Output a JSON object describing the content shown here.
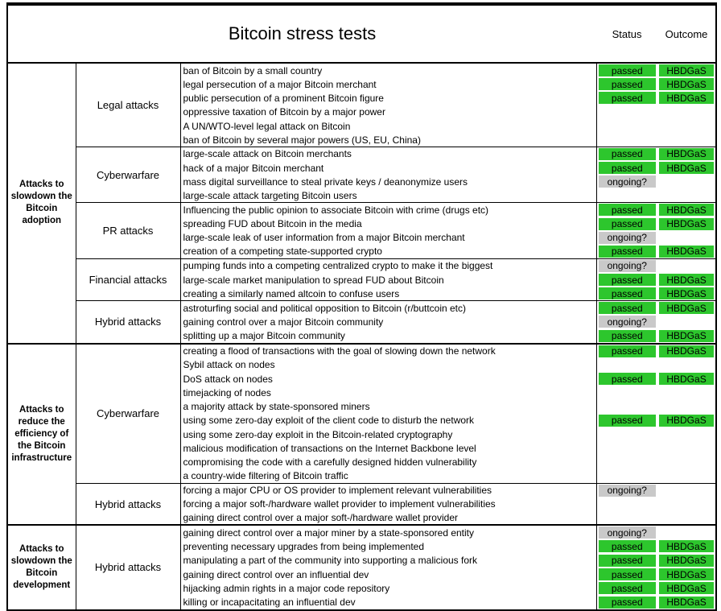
{
  "title": "Bitcoin stress tests",
  "columns": {
    "status": "Status",
    "outcome": "Outcome"
  },
  "status_colors": {
    "passed": "#2dc62d",
    "ongoing?": "#c9c9c9"
  },
  "outcome_colors": {
    "HBDGaS": "#2dc62d"
  },
  "groups": [
    {
      "category": "Attacks to slowdown the Bitcoin adoption",
      "subgroups": [
        {
          "type": "Legal attacks",
          "rows": [
            {
              "desc": "ban of Bitcoin by a small country",
              "status": "passed",
              "outcome": "HBDGaS"
            },
            {
              "desc": "legal persecution of a major Bitcoin merchant",
              "status": "passed",
              "outcome": "HBDGaS"
            },
            {
              "desc": "public persecution of a prominent Bitcoin figure",
              "status": "passed",
              "outcome": "HBDGaS"
            },
            {
              "desc": "oppressive taxation of Bitcoin by a major power",
              "status": "",
              "outcome": ""
            },
            {
              "desc": "A UN/WTO-level legal attack on Bitcoin",
              "status": "",
              "outcome": ""
            },
            {
              "desc": "ban of Bitcoin by several major powers (US, EU, China)",
              "status": "",
              "outcome": ""
            }
          ]
        },
        {
          "type": "Cyberwarfare",
          "rows": [
            {
              "desc": "large-scale attack on Bitcoin merchants",
              "status": "passed",
              "outcome": "HBDGaS"
            },
            {
              "desc": "hack of a major Bitcoin merchant",
              "status": "passed",
              "outcome": "HBDGaS"
            },
            {
              "desc": "mass digital surveillance to steal private keys / deanonymize users",
              "status": "ongoing?",
              "outcome": ""
            },
            {
              "desc": "large-scale attack targeting Bitcoin users",
              "status": "",
              "outcome": ""
            }
          ]
        },
        {
          "type": "PR attacks",
          "rows": [
            {
              "desc": "Influencing the public opinion to associate Bitcoin with crime (drugs etc)",
              "status": "passed",
              "outcome": "HBDGaS"
            },
            {
              "desc": "spreading FUD about Bitcoin in the media",
              "status": "passed",
              "outcome": "HBDGaS"
            },
            {
              "desc": "large-scale leak of user information from a major Bitcoin merchant",
              "status": "ongoing?",
              "outcome": ""
            },
            {
              "desc": "creation of a competing state-supported crypto",
              "status": "passed",
              "outcome": "HBDGaS"
            }
          ]
        },
        {
          "type": "Financial attacks",
          "rows": [
            {
              "desc": "pumping funds into a competing centralized crypto to make it the biggest",
              "status": "ongoing?",
              "outcome": ""
            },
            {
              "desc": "large-scale market manipulation to spread FUD about Bitcoin",
              "status": "passed",
              "outcome": "HBDGaS"
            },
            {
              "desc": "creating a similarly named altcoin to confuse users",
              "status": "passed",
              "outcome": "HBDGaS"
            }
          ]
        },
        {
          "type": "Hybrid attacks",
          "rows": [
            {
              "desc": "astroturfing social and political opposition to Bitcoin (r/buttcoin etc)",
              "status": "passed",
              "outcome": "HBDGaS"
            },
            {
              "desc": "gaining control over a major Bitcoin community",
              "status": "ongoing?",
              "outcome": ""
            },
            {
              "desc": "splitting up a major Bitcoin community",
              "status": "passed",
              "outcome": "HBDGaS"
            }
          ]
        }
      ]
    },
    {
      "category": "Attacks to reduce the efficiency of the Bitcoin infrastructure",
      "subgroups": [
        {
          "type": "Cyberwarfare",
          "rows": [
            {
              "desc": "creating a flood of transactions with the goal of slowing down the network",
              "status": "passed",
              "outcome": "HBDGaS"
            },
            {
              "desc": "Sybil attack on nodes",
              "status": "",
              "outcome": ""
            },
            {
              "desc": "DoS attack on nodes",
              "status": "passed",
              "outcome": "HBDGaS"
            },
            {
              "desc": "timejacking of nodes",
              "status": "",
              "outcome": ""
            },
            {
              "desc": "a majority attack by state-sponsored miners",
              "status": "",
              "outcome": ""
            },
            {
              "desc": "using some zero-day exploit of the client code to disturb the network",
              "status": "passed",
              "outcome": "HBDGaS"
            },
            {
              "desc": "using some zero-day exploit in the Bitcoin-related cryptography",
              "status": "",
              "outcome": ""
            },
            {
              "desc": "malicious modification of transactions on the Internet Backbone level",
              "status": "",
              "outcome": ""
            },
            {
              "desc": "compromising the code with a carefully designed hidden vulnerability",
              "status": "",
              "outcome": ""
            },
            {
              "desc": "a country-wide filtering of Bitcoin traffic",
              "status": "",
              "outcome": ""
            }
          ]
        },
        {
          "type": "Hybrid attacks",
          "rows": [
            {
              "desc": "forcing a major CPU or OS provider to implement relevant vulnerabilities",
              "status": "ongoing?",
              "outcome": ""
            },
            {
              "desc": "forcing a major soft-/hardware wallet provider to implement vulnerabilities",
              "status": "",
              "outcome": ""
            },
            {
              "desc": "gaining direct control over a major soft-/hardware wallet provider",
              "status": "",
              "outcome": ""
            }
          ]
        }
      ]
    },
    {
      "category": "Attacks to slowdown the Bitcoin development",
      "subgroups": [
        {
          "type": "Hybrid attacks",
          "rows": [
            {
              "desc": "gaining direct control over a major miner by a state-sponsored entity",
              "status": "ongoing?",
              "outcome": ""
            },
            {
              "desc": "preventing necessary upgrades from being implemented",
              "status": "passed",
              "outcome": "HBDGaS"
            },
            {
              "desc": "manipulating a part of the community into supporting a malicious fork",
              "status": "passed",
              "outcome": "HBDGaS"
            },
            {
              "desc": "gaining direct control over an influential dev",
              "status": "passed",
              "outcome": "HBDGaS"
            },
            {
              "desc": "hijacking admin rights in a major code repository",
              "status": "passed",
              "outcome": "HBDGaS"
            },
            {
              "desc": "killing or incapacitating an influential dev",
              "status": "passed",
              "outcome": "HBDGaS"
            }
          ]
        }
      ]
    }
  ]
}
